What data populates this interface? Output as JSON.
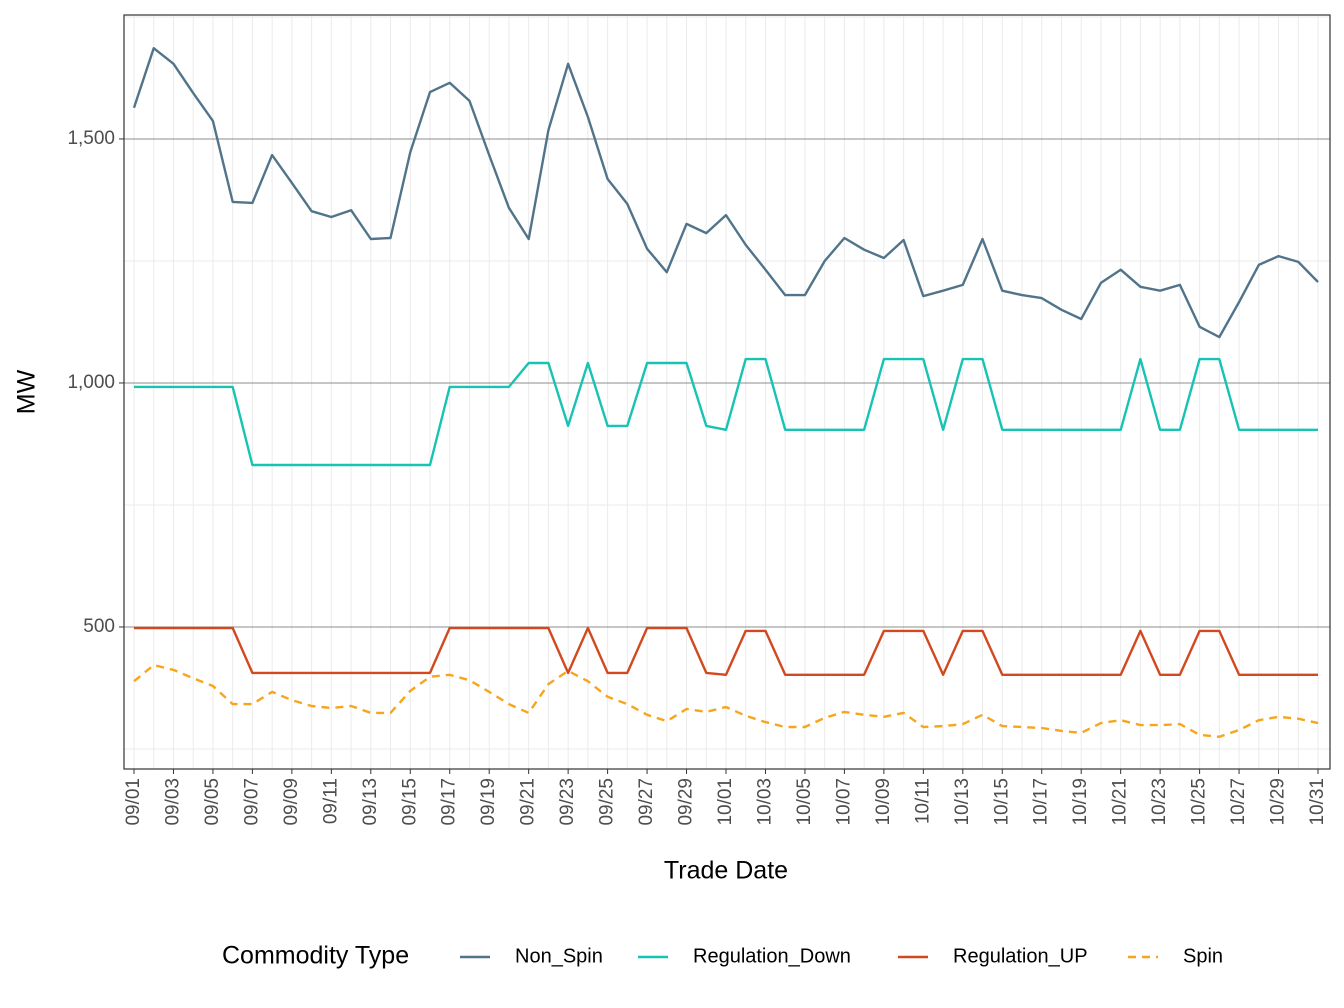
{
  "chart_data": {
    "type": "line",
    "x_label": "Trade Date",
    "y_label": "MW",
    "legend_title": "Commodity Type",
    "legend": "bottom",
    "grid": true,
    "categories": [
      "09/01",
      null,
      "09/03",
      null,
      "09/05",
      null,
      "09/07",
      null,
      "09/09",
      null,
      "09/11",
      null,
      "09/13",
      null,
      "09/15",
      null,
      "09/17",
      null,
      "09/19",
      null,
      "09/21",
      null,
      "09/23",
      null,
      "09/25",
      null,
      "09/27",
      null,
      "09/29",
      null,
      "10/01",
      null,
      "10/03",
      null,
      "10/05",
      null,
      "10/07",
      null,
      "10/09",
      null,
      "10/11",
      null,
      "10/13",
      null,
      "10/15",
      null,
      "10/17",
      null,
      "10/19",
      null,
      "10/21",
      null,
      "10/23",
      null,
      "10/25",
      null,
      "10/27",
      null,
      "10/29",
      null,
      "10/31"
    ],
    "ylim": [
      209,
      1754
    ],
    "yticks": [
      500,
      {
        "value": 1000,
        "label": "1,000"
      },
      {
        "value": 1500,
        "label": "1,500"
      }
    ],
    "series": [
      {
        "name": "Non_Spin",
        "color": "#51748a",
        "dash": "solid",
        "values": [
          1564,
          1686,
          1654,
          1594,
          1537,
          1371,
          1369,
          1467,
          1410,
          1352,
          1340,
          1354,
          1295,
          1297,
          1473,
          1596,
          1615,
          1578,
          1467,
          1359,
          1295,
          1518,
          1654,
          1545,
          1418,
          1367,
          1275,
          1227,
          1326,
          1307,
          1344,
          1283,
          1232,
          1180,
          1180,
          1250,
          1297,
          1273,
          1256,
          1293,
          1178,
          1189,
          1201,
          1295,
          1189,
          1180,
          1174,
          1150,
          1131,
          1205,
          1232,
          1197,
          1189,
          1201,
          1115,
          1094,
          1166,
          1242,
          1260,
          1248,
          1207
        ]
      },
      {
        "name": "Regulation_Down",
        "color": "#17c3b2",
        "dash": "solid",
        "values": [
          992,
          992,
          992,
          992,
          992,
          992,
          832,
          832,
          832,
          832,
          832,
          832,
          832,
          832,
          832,
          832,
          992,
          992,
          992,
          992,
          1041,
          1041,
          912,
          1041,
          912,
          912,
          1041,
          1041,
          1041,
          912,
          904,
          1049,
          1049,
          904,
          904,
          904,
          904,
          904,
          1049,
          1049,
          1049,
          904,
          1049,
          1049,
          904,
          904,
          904,
          904,
          904,
          904,
          904,
          1049,
          904,
          904,
          1049,
          1049,
          904,
          904,
          904,
          904,
          904
        ]
      },
      {
        "name": "Regulation_UP",
        "color": "#d2491f",
        "dash": "solid",
        "values": [
          498,
          498,
          498,
          498,
          498,
          498,
          406,
          406,
          406,
          406,
          406,
          406,
          406,
          406,
          406,
          406,
          498,
          498,
          498,
          498,
          498,
          498,
          406,
          498,
          406,
          406,
          498,
          498,
          498,
          406,
          402,
          492,
          492,
          402,
          402,
          402,
          402,
          402,
          492,
          492,
          492,
          402,
          492,
          492,
          402,
          402,
          402,
          402,
          402,
          402,
          402,
          492,
          402,
          402,
          492,
          492,
          402,
          402,
          402,
          402,
          402
        ]
      },
      {
        "name": "Spin",
        "color": "#f7a51c",
        "dash": "dashed",
        "values": [
          389,
          422,
          412,
          395,
          379,
          342,
          342,
          367,
          350,
          338,
          334,
          338,
          324,
          324,
          369,
          398,
          402,
          391,
          367,
          342,
          324,
          383,
          410,
          389,
          357,
          342,
          320,
          307,
          332,
          326,
          336,
          318,
          305,
          295,
          295,
          314,
          326,
          320,
          316,
          324,
          295,
          297,
          301,
          320,
          297,
          295,
          293,
          287,
          283,
          303,
          309,
          299,
          299,
          301,
          279,
          275,
          289,
          309,
          316,
          312,
          303
        ]
      }
    ]
  }
}
